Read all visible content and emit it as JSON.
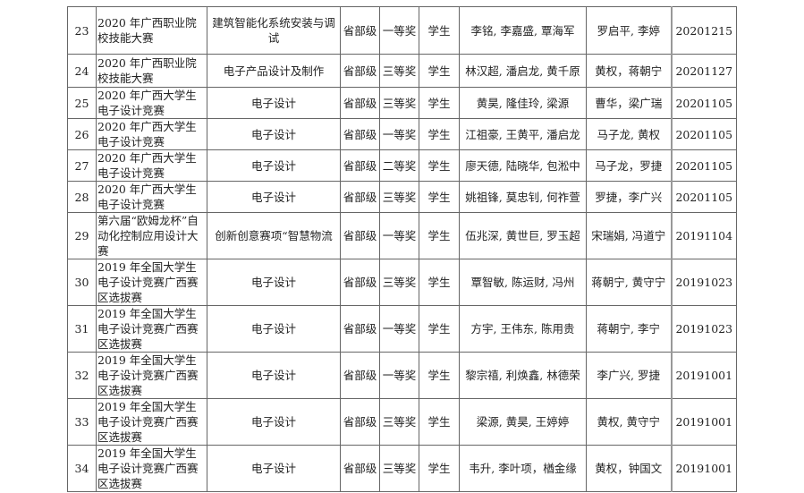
{
  "rows": [
    {
      "no": "23",
      "competition": "2020 年广西职业院校技能大赛",
      "project": "建筑智能化系统安装与调试",
      "level": "省部级",
      "award": "一等奖",
      "type": "学生",
      "students": "李铭, 李嘉盛, 覃海军",
      "teachers": "罗启平, 李婷",
      "date": "20201215"
    },
    {
      "no": "24",
      "competition": "2020 年广西职业院校技能大赛",
      "project": "电子产品设计及制作",
      "level": "省部级",
      "award": "三等奖",
      "type": "学生",
      "students": "林汉超, 潘启龙, 黄千原",
      "teachers": "黄权，蒋朝宁",
      "date": "20201127"
    },
    {
      "no": "25",
      "competition": "2020 年广西大学生电子设计竞赛",
      "project": "电子设计",
      "level": "省部级",
      "award": "三等奖",
      "type": "学生",
      "students": "黄昊, 隆佳玲, 梁源",
      "teachers": "曹华，梁广瑞",
      "date": "20201105"
    },
    {
      "no": "26",
      "competition": "2020 年广西大学生电子设计竞赛",
      "project": "电子设计",
      "level": "省部级",
      "award": "一等奖",
      "type": "学生",
      "students": "江祖豪, 王黄平, 潘启龙",
      "teachers": "马子龙, 黄权",
      "date": "20201105"
    },
    {
      "no": "27",
      "competition": "2020 年广西大学生电子设计竞赛",
      "project": "电子设计",
      "level": "省部级",
      "award": "二等奖",
      "type": "学生",
      "students": "廖天德, 陆晓华, 包淞中",
      "teachers": "马子龙，罗捷",
      "date": "20201105"
    },
    {
      "no": "28",
      "competition": "2020 年广西大学生电子设计竞赛",
      "project": "电子设计",
      "level": "省部级",
      "award": "三等奖",
      "type": "学生",
      "students": "姚祖锋, 莫忠钊, 何祚萱",
      "teachers": "罗捷，李广兴",
      "date": "20201105"
    },
    {
      "no": "29",
      "competition": "第六届“欧姆龙杯”自动化控制应用设计大赛",
      "project": "创新创意赛项“智慧物流",
      "level": "省部级",
      "award": "一等奖",
      "type": "学生",
      "students": "伍兆深, 黄世巨, 罗玉超",
      "teachers": "宋瑞娟, 冯道宁",
      "date": "20191104"
    },
    {
      "no": "30",
      "competition": "2019 年全国大学生电子设计竞赛广西赛区选拔赛",
      "project": "电子设计",
      "level": "省部级",
      "award": "三等奖",
      "type": "学生",
      "students": "覃智敏, 陈运财, 冯州",
      "teachers": "蒋朝宁, 黄守宁",
      "date": "20191023"
    },
    {
      "no": "31",
      "competition": "2019 年全国大学生电子设计竞赛广西赛区选拔赛",
      "project": "电子设计",
      "level": "省部级",
      "award": "一等奖",
      "type": "学生",
      "students": "方宇, 王伟东, 陈用贵",
      "teachers": "蒋朝宁, 李宁",
      "date": "20191023"
    },
    {
      "no": "32",
      "competition": "2019 年全国大学生电子设计竞赛广西赛区选拔赛",
      "project": "电子设计",
      "level": "省部级",
      "award": "一等奖",
      "type": "学生",
      "students": "黎宗禧, 利焕鑫, 林德荣",
      "teachers": "李广兴, 罗捷",
      "date": "20191001"
    },
    {
      "no": "33",
      "competition": "2019 年全国大学生电子设计竞赛广西赛区选拔赛",
      "project": "电子设计",
      "level": "省部级",
      "award": "三等奖",
      "type": "学生",
      "students": "梁源, 黄昊, 王婷婷",
      "teachers": "黄权, 黄守宁",
      "date": "20191001"
    },
    {
      "no": "34",
      "competition": "2019 年全国大学生电子设计竞赛广西赛区选拔赛",
      "project": "电子设计",
      "level": "省部级",
      "award": "三等奖",
      "type": "学生",
      "students": "韦升, 李叶项，楢金缘",
      "teachers": "黄权，钟国文",
      "date": "20191001"
    }
  ]
}
